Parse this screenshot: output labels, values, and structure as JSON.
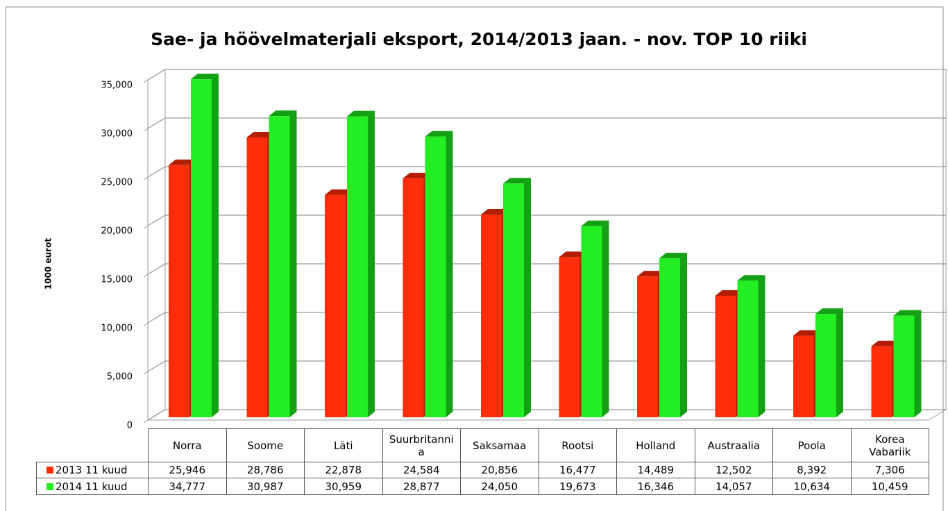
{
  "chart_data": {
    "type": "bar3d",
    "title": "Sae- ja höövelmaterjali eksport, 2014/2013 jaan. - nov. TOP 10 riiki",
    "y_label": "1000 eurot",
    "categories": [
      "Norra",
      "Soome",
      "Läti",
      "Suurbritannia",
      "Saksamaa",
      "Rootsi",
      "Holland",
      "Austraalia",
      "Poola",
      "Korea Vabariik"
    ],
    "series": [
      {
        "name": "2013 11 kuud",
        "color": "#ff2d0a",
        "side_color": "#b21d04",
        "values": [
          25946,
          28786,
          22878,
          24584,
          20856,
          16477,
          14489,
          12502,
          8392,
          7306
        ],
        "value_labels": [
          "25,946",
          "28,786",
          "22,878",
          "24,584",
          "20,856",
          "16,477",
          "14,489",
          "12,502",
          "8,392",
          "7,306"
        ]
      },
      {
        "name": "2014 11 kuud",
        "color": "#22ee22",
        "side_color": "#14a014",
        "values": [
          34777,
          30987,
          30959,
          28877,
          24050,
          19673,
          16346,
          14057,
          10634,
          10459
        ],
        "value_labels": [
          "34,777",
          "30,987",
          "30,959",
          "28,877",
          "24,050",
          "19,673",
          "16,346",
          "14,057",
          "10,634",
          "10,459"
        ]
      }
    ],
    "ylim": [
      0,
      35000
    ],
    "yticks": [
      {
        "value": 0,
        "label": "0"
      },
      {
        "value": 5000,
        "label": "5,000"
      },
      {
        "value": 10000,
        "label": "10,000"
      },
      {
        "value": 15000,
        "label": "15,000"
      },
      {
        "value": 20000,
        "label": "20,000"
      },
      {
        "value": 25000,
        "label": "25,000"
      },
      {
        "value": 30000,
        "label": "30,000"
      },
      {
        "value": 35000,
        "label": "35,000"
      }
    ],
    "grid": true
  }
}
